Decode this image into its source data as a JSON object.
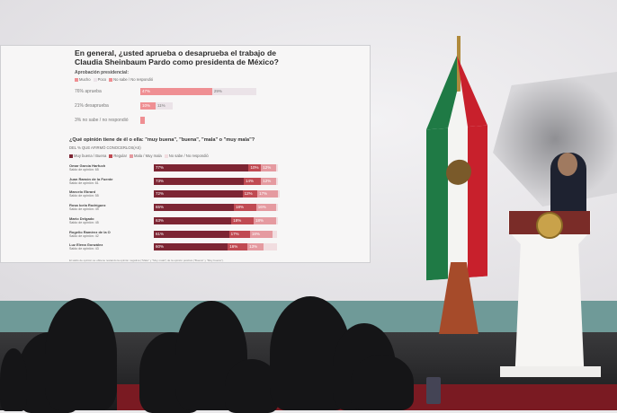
{
  "screen": {
    "q1": {
      "title_line1": "En general, ¿usted aprueba o desaprueba el trabajo de",
      "title_line2": "Claudia Sheinbaum Pardo como presidenta de México?",
      "section": "Aprobación presidencial:",
      "legend": [
        "Mucho",
        "Poco",
        "No sabe / No respondió"
      ],
      "rows": [
        {
          "label": "76% aprueba",
          "segments": [
            {
              "value": 47,
              "text": "47%"
            },
            {
              "value": 29,
              "text": "29%"
            }
          ]
        },
        {
          "label": "21% desaprueba",
          "segments": [
            {
              "value": 10,
              "text": "10%"
            },
            {
              "value": 11,
              "text": "11%"
            }
          ]
        },
        {
          "label": "3% no sabe / no respondió",
          "segments": [
            {
              "value": 3,
              "text": ""
            }
          ]
        }
      ]
    },
    "q2": {
      "title": "¿Qué opinión tiene de él o ella: \"muy buena\", \"buena\", \"mala\" o \"muy mala\"?",
      "subtitle": "DEL % QUE AFIRMÓ CONOCERLOS(AS)",
      "legend": [
        "Muy buena / Buena",
        "Regular",
        "Mala / Muy mala",
        "No sabe / No respondió"
      ],
      "rows": [
        {
          "name": "Omar García Harfuch",
          "saldo": "Saldo de opinión: 65",
          "values": [
            77,
            10,
            12
          ]
        },
        {
          "name": "Juan Ramón de la Fuente",
          "saldo": "Saldo de opinión: 61",
          "values": [
            73,
            14,
            12
          ]
        },
        {
          "name": "Marcelo Ebrard",
          "saldo": "Saldo de opinión: 55",
          "values": [
            72,
            12,
            17
          ]
        },
        {
          "name": "Rosa Icela Rodríguez",
          "saldo": "Saldo de opinión: 49",
          "values": [
            65,
            18,
            16
          ]
        },
        {
          "name": "Mario Delgado",
          "saldo": "Saldo de opinión: 45",
          "values": [
            63,
            18,
            18
          ]
        },
        {
          "name": "Rogelio Ramírez de la O",
          "saldo": "Saldo de opinión: 42",
          "values": [
            61,
            17,
            18
          ]
        },
        {
          "name": "Luz Elena González",
          "saldo": "Saldo de opinión: 43",
          "values": [
            60,
            16,
            13
          ]
        }
      ],
      "footnote": "El saldo de opinión se obtiene restando la opinión negativa (\"Mala\" y \"Muy mala\") de la opinión positiva (\"Buena\" y \"Muy buena\")."
    },
    "colors": {
      "mucho": "#ef8f93",
      "poco": "#ebe3e8",
      "q2": [
        "#7d2533",
        "#c04a52",
        "#e59aa0",
        "#f1dde0"
      ]
    }
  },
  "chart_data": [
    {
      "type": "bar",
      "orientation": "horizontal",
      "stacked": true,
      "title": "Aprobación presidencial:",
      "categories": [
        "76% aprueba",
        "21% desaprueba",
        "3% no sabe / no respondió"
      ],
      "series": [
        {
          "name": "Mucho",
          "values": [
            47,
            10,
            3
          ]
        },
        {
          "name": "Poco",
          "values": [
            29,
            11,
            0
          ]
        }
      ]
    },
    {
      "type": "bar",
      "orientation": "horizontal",
      "stacked": true,
      "title": "¿Qué opinión tiene de él o ella: \"muy buena\", \"buena\", \"mala\" o \"muy mala\"?",
      "categories": [
        "Omar García Harfuch",
        "Juan Ramón de la Fuente",
        "Marcelo Ebrard",
        "Rosa Icela Rodríguez",
        "Mario Delgado",
        "Rogelio Ramírez de la O",
        "Luz Elena González"
      ],
      "series": [
        {
          "name": "Muy buena / Buena",
          "values": [
            77,
            73,
            72,
            65,
            63,
            61,
            60
          ]
        },
        {
          "name": "Regular",
          "values": [
            10,
            14,
            12,
            18,
            18,
            17,
            16
          ]
        },
        {
          "name": "Mala / Muy mala",
          "values": [
            12,
            12,
            17,
            16,
            18,
            18,
            13
          ]
        }
      ]
    }
  ]
}
